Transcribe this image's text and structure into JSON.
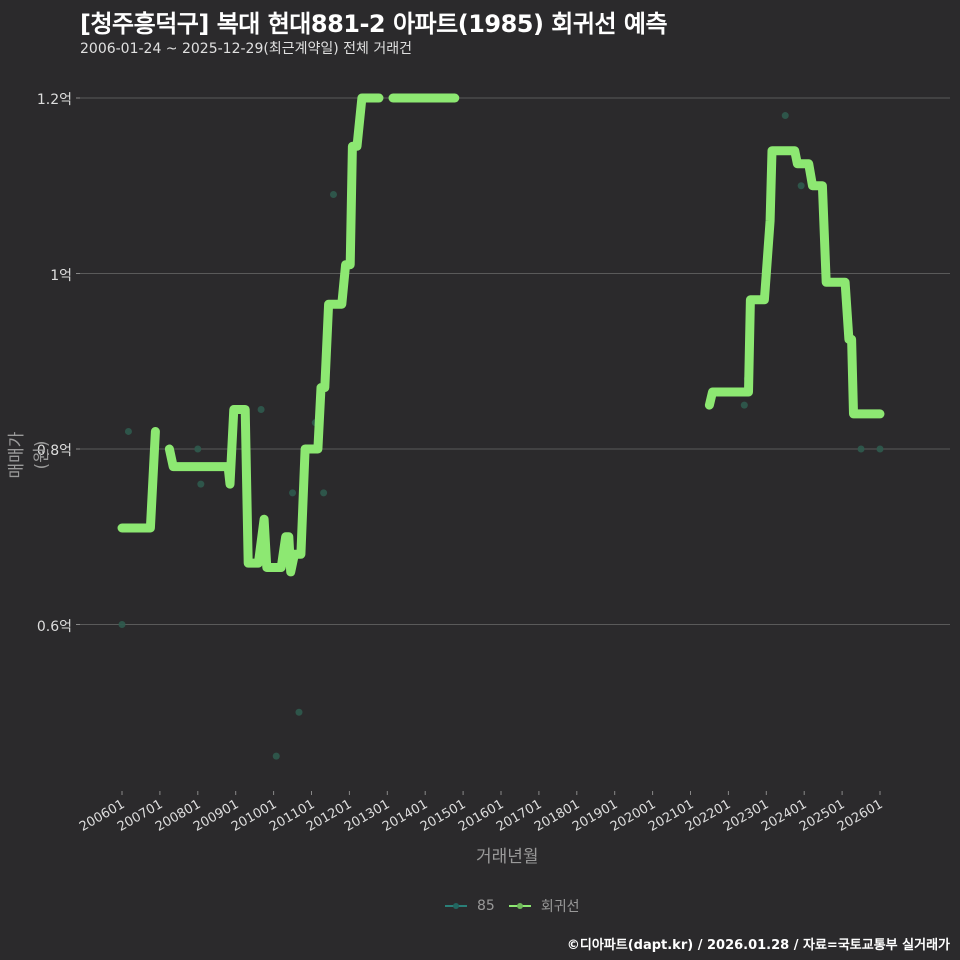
{
  "header": {
    "title": "[청주흥덕구] 복대 현대881-2 아파트(1985) 회귀선 예측",
    "subtitle": "2006-01-24 ~ 2025-12-29(최근계약일) 전체 거래건"
  },
  "footer": {
    "credit": "©디아파트(dapt.kr) / 2026.01.28 / 자료=국토교통부 실거래가"
  },
  "colors": {
    "background": "#2b2a2c",
    "regression": "#8de872",
    "scatter_85": "#2f5a4e",
    "grid": "#5a5a5a"
  },
  "chart_data": {
    "type": "line",
    "title": "[청주흥덕구] 복대 현대881-2 아파트(1985) 회귀선 예측",
    "subtitle": "2006-01-24 ~ 2025-12-29(최근계약일) 전체 거래건",
    "xlabel": "거래년월",
    "ylabel": "매매가(원)",
    "ylim": [
      0.42,
      1.22
    ],
    "y_unit": "억",
    "grid": true,
    "legend_position": "bottom",
    "yticks": [
      "0.6억",
      "0.8억",
      "1억",
      "1.2억"
    ],
    "ytick_values": [
      0.6,
      0.8,
      1.0,
      1.2
    ],
    "xticks": [
      "200601",
      "200701",
      "200801",
      "200901",
      "201001",
      "201101",
      "201201",
      "201301",
      "201401",
      "201501",
      "201601",
      "201701",
      "201801",
      "201901",
      "202001",
      "202101",
      "202201",
      "202301",
      "202401",
      "202501",
      "202601"
    ],
    "legend": [
      "85",
      "회귀선"
    ],
    "series": [
      {
        "name": "회귀선",
        "kind": "line",
        "segments": [
          [
            [
              2006.0,
              0.71
            ],
            [
              2006.75,
              0.71
            ],
            [
              2006.88,
              0.82
            ]
          ],
          [
            [
              2007.25,
              0.8
            ],
            [
              2007.35,
              0.78
            ],
            [
              2008.8,
              0.78
            ],
            [
              2008.85,
              0.76
            ],
            [
              2008.95,
              0.845
            ],
            [
              2009.25,
              0.845
            ],
            [
              2009.33,
              0.67
            ],
            [
              2009.6,
              0.67
            ],
            [
              2009.75,
              0.72
            ],
            [
              2009.82,
              0.665
            ],
            [
              2010.2,
              0.665
            ],
            [
              2010.32,
              0.7
            ],
            [
              2010.4,
              0.7
            ],
            [
              2010.45,
              0.66
            ],
            [
              2010.55,
              0.68
            ],
            [
              2010.72,
              0.68
            ],
            [
              2010.83,
              0.8
            ],
            [
              2011.17,
              0.8
            ],
            [
              2011.25,
              0.87
            ],
            [
              2011.35,
              0.87
            ],
            [
              2011.45,
              0.965
            ],
            [
              2011.8,
              0.965
            ],
            [
              2011.9,
              1.01
            ],
            [
              2012.02,
              1.01
            ],
            [
              2012.08,
              1.145
            ],
            [
              2012.2,
              1.145
            ],
            [
              2012.33,
              1.2
            ],
            [
              2012.78,
              1.2
            ]
          ],
          [
            [
              2013.15,
              1.2
            ],
            [
              2014.78,
              1.2
            ]
          ],
          [
            [
              2021.5,
              0.85
            ],
            [
              2021.58,
              0.865
            ],
            [
              2022.53,
              0.865
            ],
            [
              2022.58,
              0.97
            ],
            [
              2022.95,
              0.97
            ],
            [
              2023.0,
              1.0
            ],
            [
              2023.1,
              1.06
            ],
            [
              2023.15,
              1.14
            ],
            [
              2023.75,
              1.14
            ],
            [
              2023.82,
              1.125
            ],
            [
              2024.12,
              1.125
            ],
            [
              2024.22,
              1.1
            ],
            [
              2024.48,
              1.1
            ],
            [
              2024.58,
              0.99
            ],
            [
              2025.08,
              0.99
            ],
            [
              2025.18,
              0.925
            ],
            [
              2025.25,
              0.925
            ],
            [
              2025.3,
              0.84
            ],
            [
              2026.0,
              0.84
            ]
          ]
        ]
      },
      {
        "name": "85",
        "kind": "scatter",
        "points": [
          [
            2006.0,
            0.6
          ],
          [
            2006.17,
            0.82
          ],
          [
            2008.0,
            0.8
          ],
          [
            2008.08,
            0.76
          ],
          [
            2009.67,
            0.845
          ],
          [
            2010.07,
            0.45
          ],
          [
            2010.5,
            0.75
          ],
          [
            2010.67,
            0.5
          ],
          [
            2011.1,
            0.83
          ],
          [
            2011.32,
            0.75
          ],
          [
            2011.58,
            1.09
          ],
          [
            2022.42,
            0.85
          ],
          [
            2022.5,
            0.88
          ],
          [
            2023.5,
            1.18
          ],
          [
            2023.92,
            1.1
          ],
          [
            2025.5,
            0.8
          ],
          [
            2026.0,
            0.8
          ]
        ]
      }
    ]
  }
}
